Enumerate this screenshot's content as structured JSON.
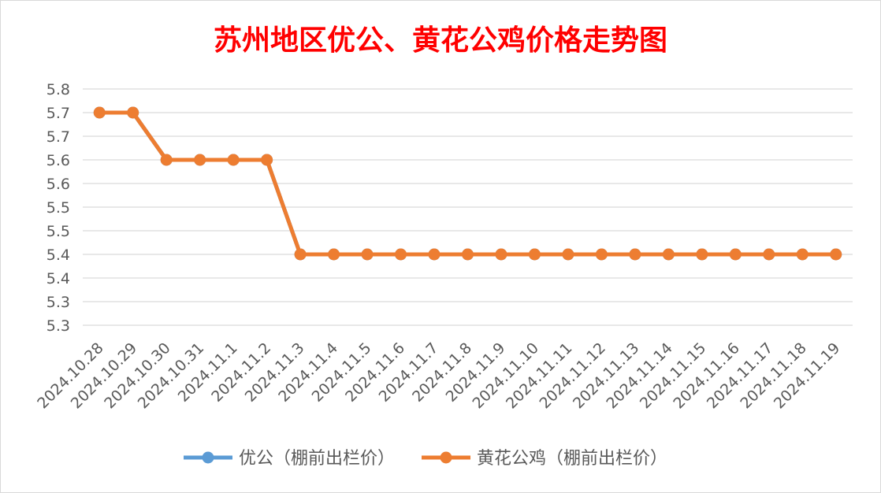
{
  "chart_data": {
    "type": "line",
    "title": "苏州地区优公、黄花公鸡价格走势图",
    "xlabel": "",
    "ylabel": "",
    "categories": [
      "2024.10.28",
      "2024.10.29",
      "2024.10.30",
      "2024.10.31",
      "2024.11.1",
      "2024.11.2",
      "2024.11.3",
      "2024.11.4",
      "2024.11.5",
      "2024.11.6",
      "2024.11.7",
      "2024.11.8",
      "2024.11.9",
      "2024.11.10",
      "2024.11.11",
      "2024.11.12",
      "2024.11.13",
      "2024.11.14",
      "2024.11.15",
      "2024.11.16",
      "2024.11.17",
      "2024.11.18",
      "2024.11.19"
    ],
    "y_tick_labels": [
      "5.8",
      "5.7",
      "5.7",
      "5.6",
      "5.6",
      "5.5",
      "5.5",
      "5.4",
      "5.4",
      "5.3",
      "5.3"
    ],
    "ylim": [
      5.25,
      5.75
    ],
    "grid": true,
    "legend_position": "bottom",
    "series": [
      {
        "name": "优公（棚前出栏价）",
        "color": "#5b9bd5",
        "values": [
          5.7,
          5.7,
          5.6,
          5.6,
          5.6,
          5.6,
          5.4,
          5.4,
          5.4,
          5.4,
          5.4,
          5.4,
          5.4,
          5.4,
          5.4,
          5.4,
          5.4,
          5.4,
          5.4,
          5.4,
          5.4,
          5.4,
          5.4
        ]
      },
      {
        "name": "黄花公鸡（棚前出栏价）",
        "color": "#ed7d31",
        "values": [
          5.7,
          5.7,
          5.6,
          5.6,
          5.6,
          5.6,
          5.4,
          5.4,
          5.4,
          5.4,
          5.4,
          5.4,
          5.4,
          5.4,
          5.4,
          5.4,
          5.4,
          5.4,
          5.4,
          5.4,
          5.4,
          5.4,
          5.4
        ]
      }
    ],
    "colors": {
      "title": "#ff0000",
      "grid": "#d9d9d9",
      "text": "#595959"
    }
  }
}
